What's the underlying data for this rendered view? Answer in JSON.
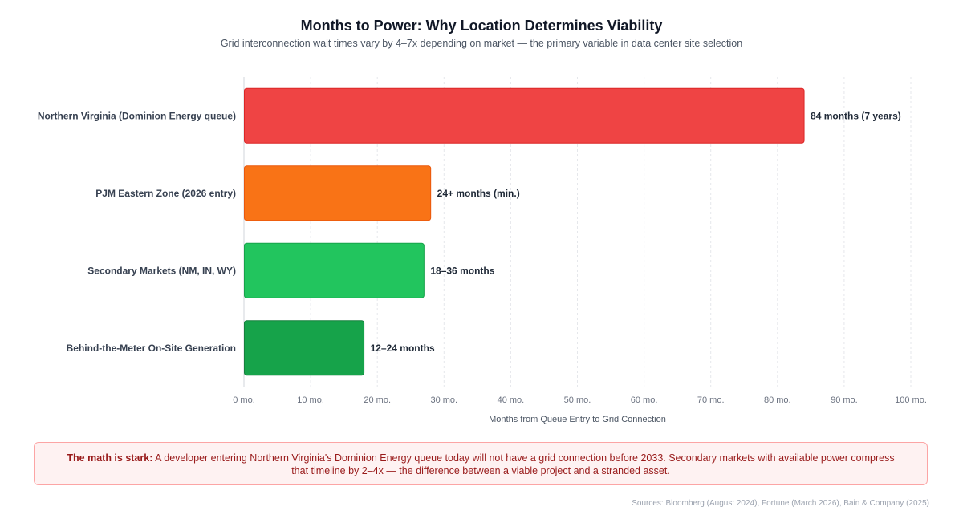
{
  "chart_data": {
    "type": "bar",
    "orientation": "horizontal",
    "title": "Months to Power: Why Location Determines Viability",
    "subtitle": "Grid interconnection wait times vary by 4–7x depending on market — the primary variable in data center site selection",
    "categories": [
      "Northern Virginia (Dominion Energy queue)",
      "PJM Eastern Zone (2026 entry)",
      "Secondary Markets (NM, IN, WY)",
      "Behind-the-Meter On-Site Generation"
    ],
    "values": [
      84,
      28,
      27,
      18
    ],
    "value_labels": [
      "84 months (7 years)",
      "24+ months (min.)",
      "18–36 months",
      "12–24 months"
    ],
    "colors": [
      "#ef4444",
      "#f97316",
      "#22c55e",
      "#16a34a"
    ],
    "border_colors": [
      "#dc2626",
      "#ea580c",
      "#16a34a",
      "#15803d"
    ],
    "xlim": [
      0,
      100
    ],
    "x_ticks": [
      0,
      10,
      20,
      30,
      40,
      50,
      60,
      70,
      80,
      90,
      100
    ],
    "x_tick_labels": [
      "0 mo.",
      "10 mo.",
      "20 mo.",
      "30 mo.",
      "40 mo.",
      "50 mo.",
      "60 mo.",
      "70 mo.",
      "80 mo.",
      "90 mo.",
      "100 mo."
    ],
    "xlabel": "Months from Queue Entry to Grid Connection",
    "ylabel": "",
    "grid": true,
    "legend": "none"
  },
  "callout": {
    "lead": "The math is stark:",
    "text": " A developer entering Northern Virginia's Dominion Energy queue today will not have a grid connection before 2033. Secondary markets with available power compress that timeline by 2–4x — the difference between a viable project and a stranded asset."
  },
  "sources": "Sources: Bloomberg (August 2024), Fortune (March 2026), Bain & Company (2025)"
}
